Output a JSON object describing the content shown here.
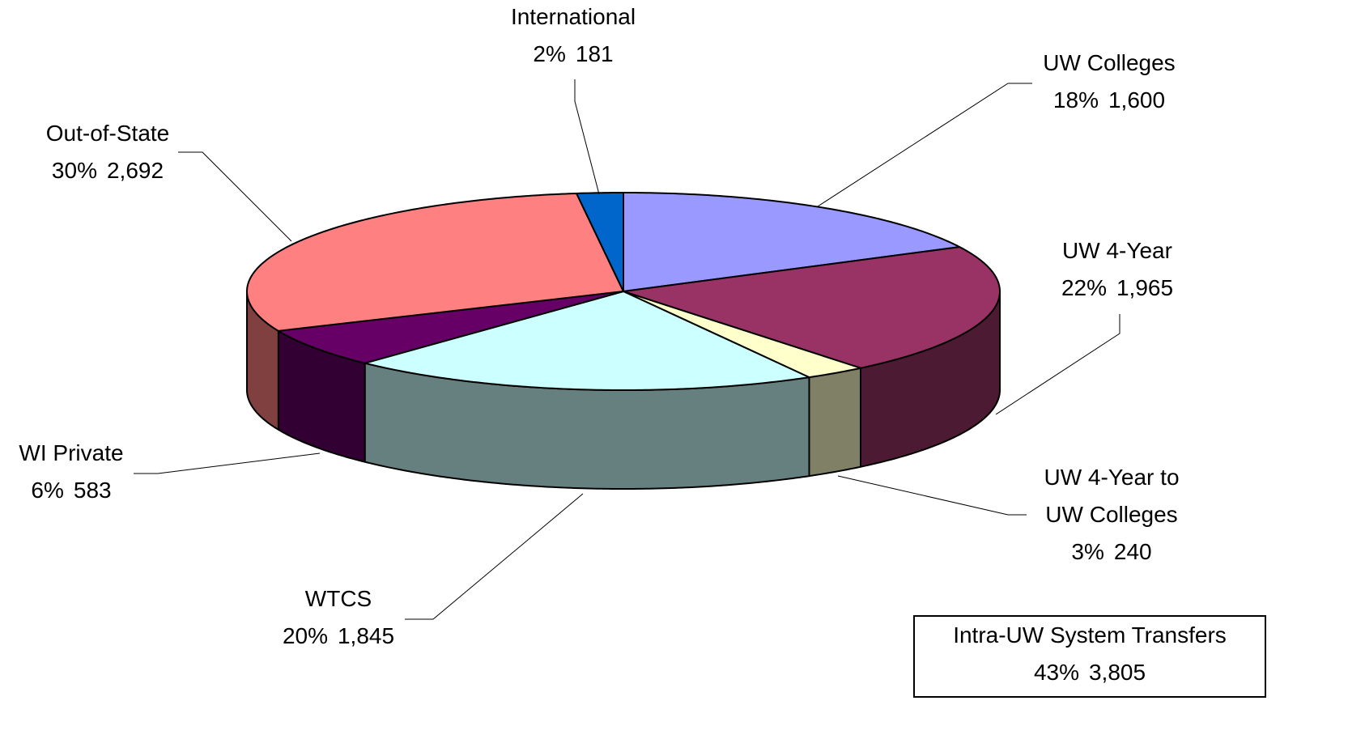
{
  "chart_data": {
    "type": "pie",
    "three_d": true,
    "categories": [
      "UW Colleges",
      "UW 4-Year",
      "UW 4-Year to\nUW Colleges",
      "WTCS",
      "WI Private",
      "Out-of-State",
      "International"
    ],
    "values": [
      1600,
      1965,
      240,
      1845,
      583,
      2692,
      181
    ],
    "value_labels": [
      "1,600",
      "1,965",
      "240",
      "1,845",
      "583",
      "2,692",
      "181"
    ],
    "percents": [
      18,
      22,
      3,
      20,
      6,
      30,
      2
    ],
    "percent_labels": [
      "18%",
      "22%",
      "3%",
      "20%",
      "6%",
      "30%",
      "2%"
    ],
    "colors": [
      "#9999ff",
      "#993366",
      "#ffffcc",
      "#ccffff",
      "#660066",
      "#ff8080",
      "#0066cc"
    ],
    "annotation": {
      "text": "Intra-UW System Transfers",
      "percent": 43,
      "percent_label": "43%",
      "value": 3805,
      "value_label": "3,805"
    }
  }
}
